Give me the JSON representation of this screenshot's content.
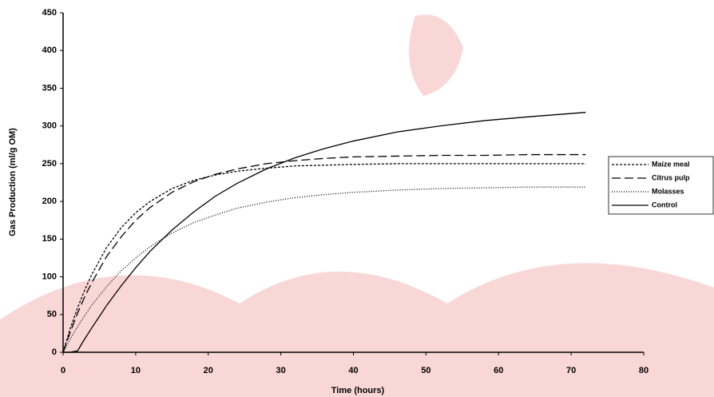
{
  "chart_data": {
    "type": "line",
    "x_label": "Time (hours)",
    "y_label": "Gas Production (ml/g OM)",
    "x": [
      0,
      1,
      2,
      3,
      4,
      6,
      8,
      10,
      12,
      15,
      18,
      21,
      24,
      28,
      32,
      36,
      40,
      46,
      52,
      58,
      64,
      72
    ],
    "series": [
      {
        "name": "Maize meal",
        "color": "#000000",
        "dash": "3,2",
        "values": [
          0,
          32,
          59,
          83,
          104,
          139,
          165,
          185,
          200,
          217,
          228,
          235,
          240,
          244,
          247,
          248,
          249,
          250,
          250,
          250,
          250,
          250
        ]
      },
      {
        "name": "Citrus pulp",
        "color": "#000000",
        "dash": "11,5",
        "values": [
          0,
          27,
          52,
          74,
          93,
          127,
          153,
          175,
          192,
          212,
          226,
          236,
          243,
          250,
          254,
          257,
          259,
          260,
          261,
          261,
          262,
          262
        ]
      },
      {
        "name": "Molasses",
        "color": "#000000",
        "dash": "1,2",
        "values": [
          0,
          18,
          34,
          49,
          63,
          87,
          108,
          125,
          140,
          158,
          172,
          182,
          191,
          199,
          205,
          209,
          212,
          215,
          217,
          218,
          219,
          219
        ]
      },
      {
        "name": "Control",
        "color": "#000000",
        "dash": "none",
        "values": [
          0,
          0,
          2,
          18,
          33,
          62,
          88,
          112,
          134,
          162,
          186,
          207,
          224,
          243,
          258,
          270,
          280,
          292,
          300,
          307,
          312,
          318
        ]
      }
    ],
    "xlim": [
      0,
      80
    ],
    "xticks": [
      0,
      10,
      20,
      30,
      40,
      50,
      60,
      70,
      80
    ],
    "ylim": [
      0,
      450
    ],
    "yticks": [
      0,
      50,
      100,
      150,
      200,
      250,
      300,
      350,
      400,
      450
    ],
    "grid": false,
    "legend": "right"
  }
}
